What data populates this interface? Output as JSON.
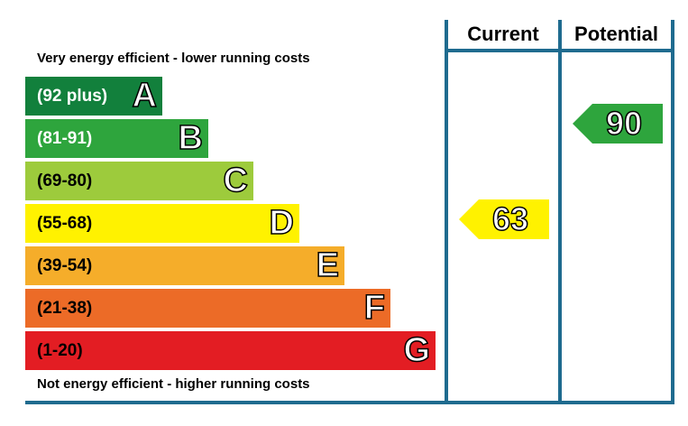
{
  "chart_data": {
    "type": "energy-rating",
    "headers": {
      "current": "Current",
      "potential": "Potential"
    },
    "top_caption": "Very energy efficient - lower running costs",
    "bottom_caption": "Not energy efficient - higher running costs",
    "bands": [
      {
        "letter": "A",
        "range": "(92 plus)",
        "color": "#12803c",
        "text_color": "#ffffff"
      },
      {
        "letter": "B",
        "range": "(81-91)",
        "color": "#2ea53d",
        "text_color": "#ffffff"
      },
      {
        "letter": "C",
        "range": "(69-80)",
        "color": "#9dcb3c",
        "text_color": "#000000"
      },
      {
        "letter": "D",
        "range": "(55-68)",
        "color": "#fff200",
        "text_color": "#000000"
      },
      {
        "letter": "E",
        "range": "(39-54)",
        "color": "#f5ad2a",
        "text_color": "#000000"
      },
      {
        "letter": "F",
        "range": "(21-38)",
        "color": "#ec6b27",
        "text_color": "#000000"
      },
      {
        "letter": "G",
        "range": "(1-20)",
        "color": "#e31d23",
        "text_color": "#000000"
      }
    ],
    "current": {
      "value": 63,
      "band": "D",
      "color": "#fff200"
    },
    "potential": {
      "value": 90,
      "band": "B",
      "color": "#2ea53d"
    },
    "frame_color": "#1f6b8f"
  }
}
